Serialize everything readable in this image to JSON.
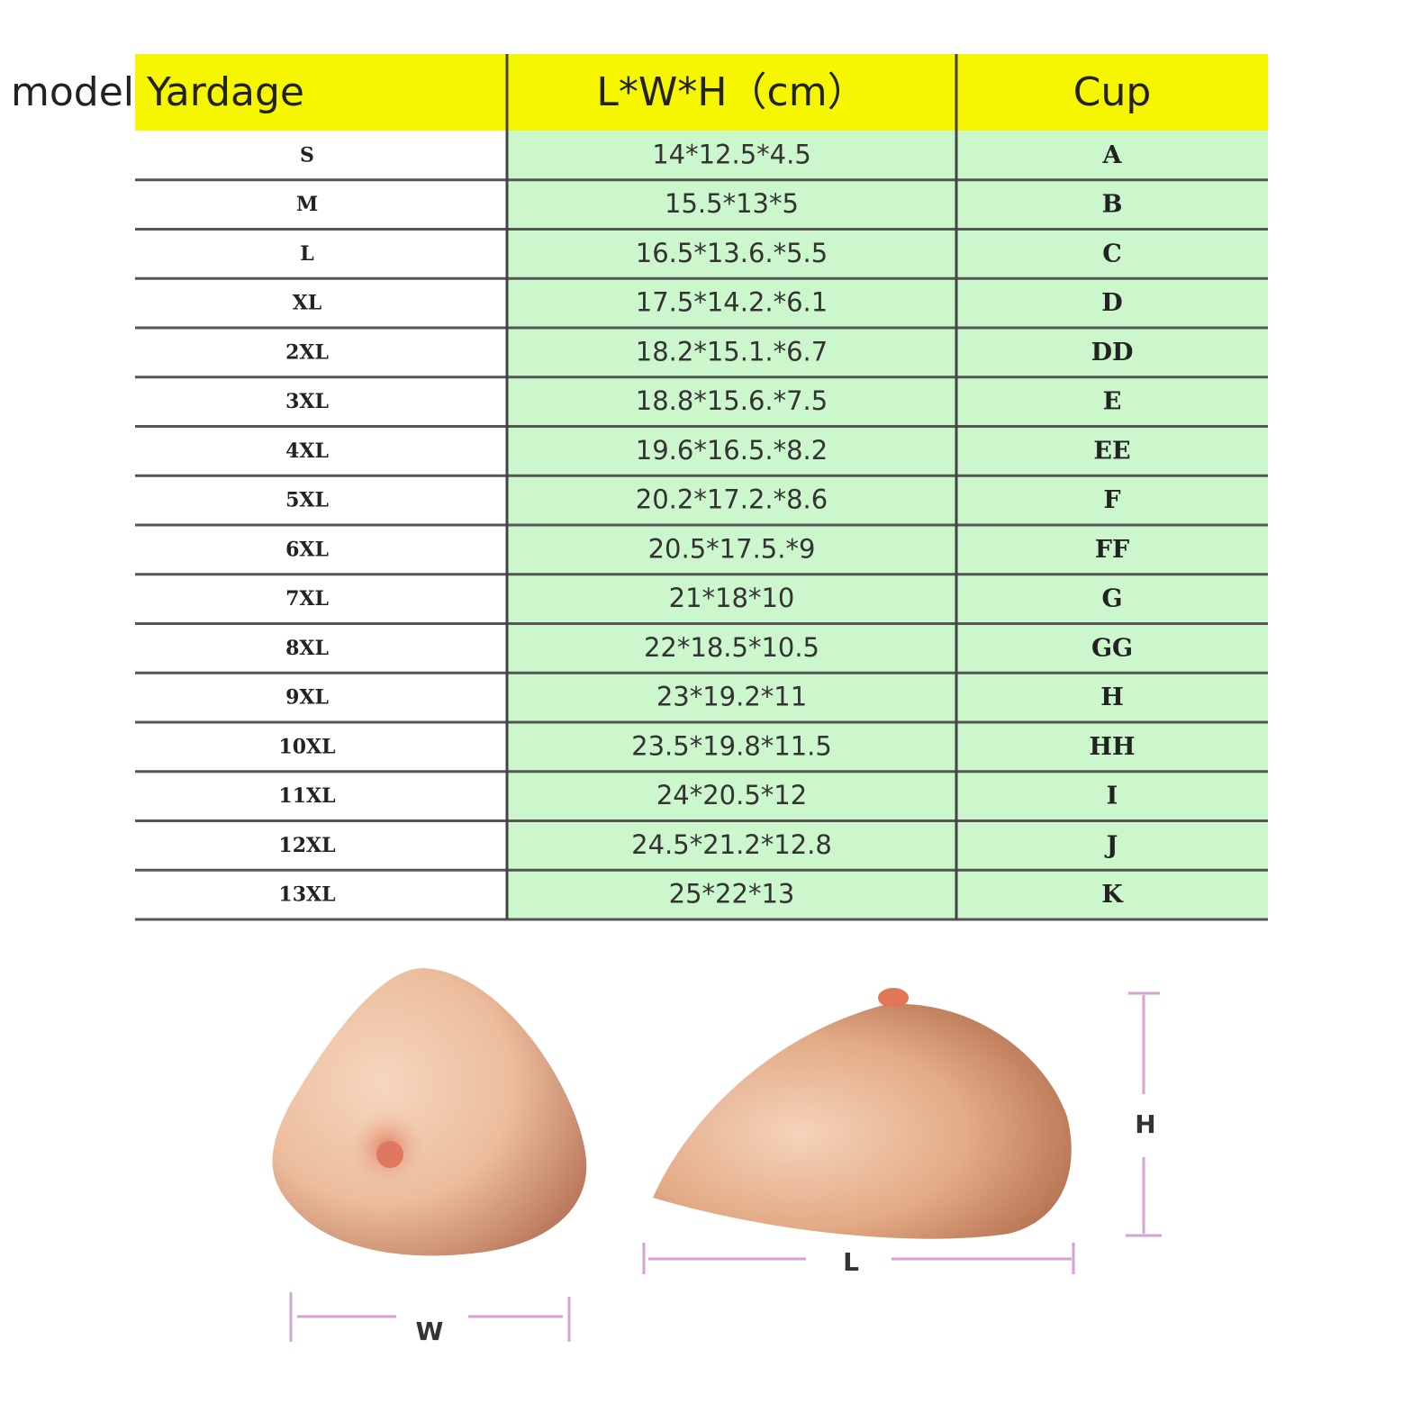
{
  "table": {
    "header": [
      "model Yardage",
      "L*W*H（cm）",
      "Cup"
    ],
    "rows": [
      [
        "S",
        "14*12.5*4.5",
        "A"
      ],
      [
        "M",
        "15.5*13*5",
        "B"
      ],
      [
        "L",
        "16.5*13.6.*5.5",
        "C"
      ],
      [
        "XL",
        "17.5*14.2.*6.1",
        "D"
      ],
      [
        "2XL",
        "18.2*15.1.*6.7",
        "DD"
      ],
      [
        "3XL",
        "18.8*15.6.*7.5",
        "E"
      ],
      [
        "4XL",
        "19.6*16.5.*8.2",
        "EE"
      ],
      [
        "5XL",
        "20.2*17.2.*8.6",
        "F"
      ],
      [
        "6XL",
        "20.5*17.5.*9",
        "FF"
      ],
      [
        "7XL",
        "21*18*10",
        "G"
      ],
      [
        "8XL",
        "22*18.5*10.5",
        "GG"
      ],
      [
        "9XL",
        "23*19.2*11",
        "H"
      ],
      [
        "10XL",
        "23.5*19.8*11.5",
        "HH"
      ],
      [
        "11XL",
        "24*20.5*12",
        "I"
      ],
      [
        "12XL",
        "24.5*21.2*12.8",
        "J"
      ],
      [
        "13XL",
        "25*22*13",
        "K"
      ]
    ]
  },
  "diagram": {
    "width_label": "W",
    "length_label": "L",
    "height_label": "H"
  }
}
